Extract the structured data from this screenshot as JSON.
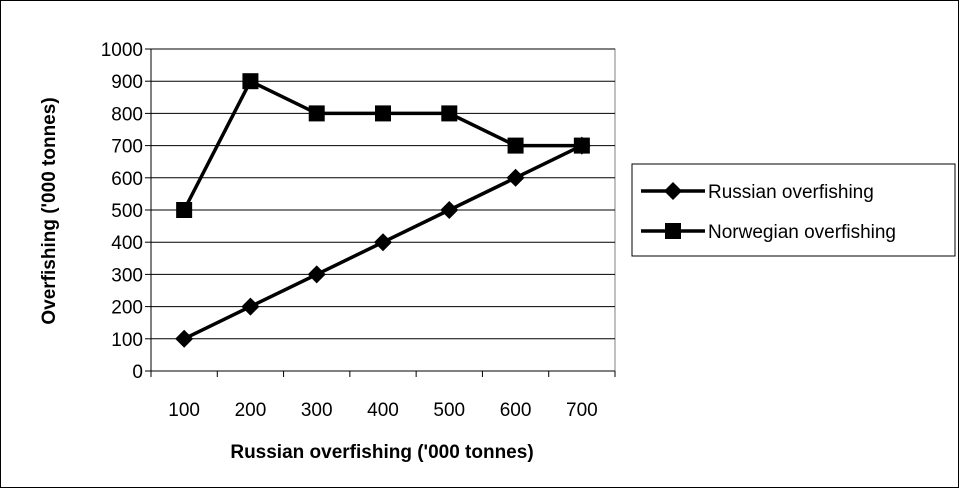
{
  "chart_data": {
    "type": "line",
    "title": "",
    "xlabel": "Russian overfishing ('000 tonnes)",
    "ylabel": "Overfishing ('000 tonnes)",
    "categories": [
      "100",
      "200",
      "300",
      "400",
      "500",
      "600",
      "700"
    ],
    "ylim": [
      0,
      1000
    ],
    "yticks": [
      "0",
      "100",
      "200",
      "300",
      "400",
      "500",
      "600",
      "700",
      "800",
      "900",
      "1000"
    ],
    "grid": "horizontal",
    "legend_position": "right",
    "series": [
      {
        "name": "Russian overfishing",
        "marker": "diamond",
        "color": "#000000",
        "values": [
          100,
          200,
          300,
          400,
          500,
          600,
          700
        ]
      },
      {
        "name": "Norwegian overfishing",
        "marker": "square",
        "color": "#000000",
        "values": [
          500,
          900,
          800,
          800,
          800,
          700,
          700
        ]
      }
    ]
  }
}
